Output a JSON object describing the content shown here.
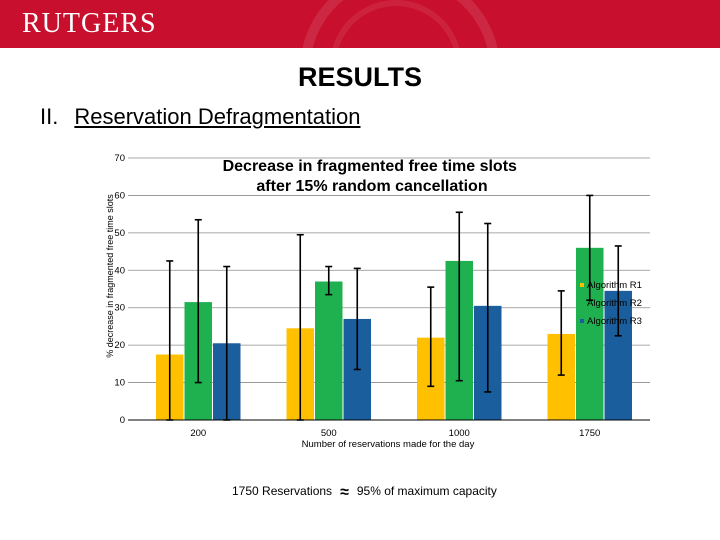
{
  "header": {
    "logo_text": "RUTGERS",
    "brand_color": "#c8102e"
  },
  "slide": {
    "title": "RESULTS",
    "section_number": "II.",
    "section_title": "Reservation Defragmentation"
  },
  "chart_data": {
    "type": "bar",
    "title": "Decrease in fragmented free time slots after 15% random cancellation",
    "xlabel": "Number of reservations made for the day",
    "ylabel": "% decrease in fragmented free time slots",
    "ylim": [
      0,
      70
    ],
    "yticks": [
      0,
      10,
      20,
      30,
      40,
      50,
      60,
      70
    ],
    "grid": true,
    "legend_position": "right",
    "categories": [
      "200",
      "500",
      "1000",
      "1750"
    ],
    "series": [
      {
        "name": "Algorithm R1",
        "color": "#ffc000",
        "values": [
          17.5,
          24.5,
          22,
          23
        ],
        "err_low": [
          0,
          0,
          9,
          12
        ],
        "err_high": [
          42.5,
          49.5,
          35.5,
          34.5
        ]
      },
      {
        "name": "Algorithm R2",
        "color": "#1fb050",
        "values": [
          31.5,
          37,
          42.5,
          46
        ],
        "err_low": [
          10,
          33.5,
          10.5,
          32
        ],
        "err_high": [
          53.5,
          41,
          55.5,
          60
        ]
      },
      {
        "name": "Algorithm R3",
        "color": "#1b5e9e",
        "values": [
          20.5,
          27,
          30.5,
          34.5
        ],
        "err_low": [
          0,
          13.5,
          7.5,
          22.5
        ],
        "err_high": [
          41,
          40.5,
          52.5,
          46.5
        ]
      }
    ]
  },
  "footnote": {
    "left": "1750 Reservations",
    "symbol": "≈",
    "right": "95% of maximum capacity"
  }
}
